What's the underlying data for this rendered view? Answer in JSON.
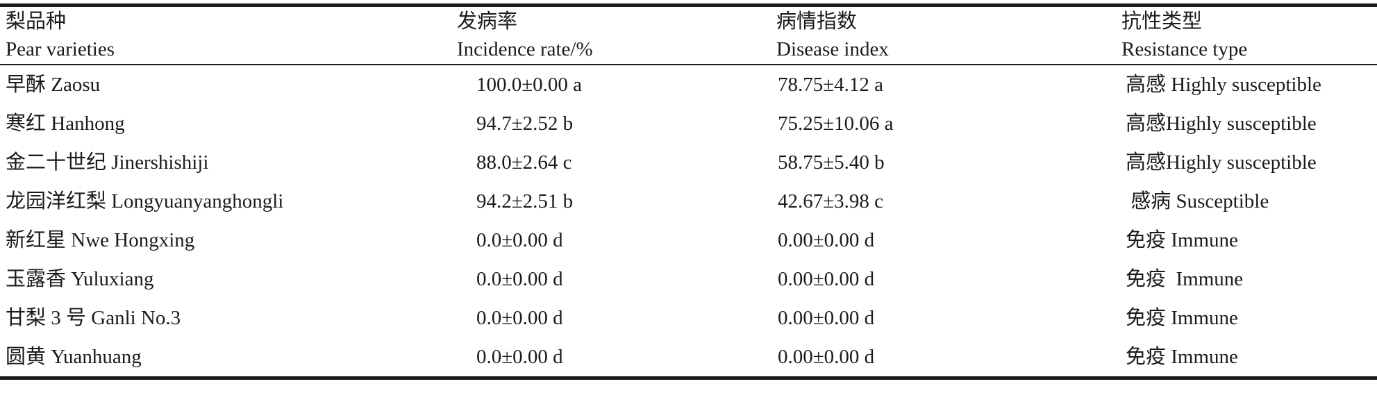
{
  "table": {
    "columns": [
      {
        "zh": "梨品种",
        "en": "Pear varieties"
      },
      {
        "zh": "发病率",
        "en": "Incidence rate/%"
      },
      {
        "zh": "病情指数",
        "en": "Disease index"
      },
      {
        "zh": "抗性类型",
        "en": "Resistance type"
      }
    ],
    "rows": [
      {
        "variety": "早酥 Zaosu",
        "incidence": "100.0±0.00 a",
        "disease_index": "78.75±4.12 a",
        "resistance": "高感 Highly susceptible"
      },
      {
        "variety": "寒红 Hanhong",
        "incidence": "94.7±2.52 b",
        "disease_index": "75.25±10.06 a",
        "resistance": "高感Highly susceptible"
      },
      {
        "variety": "金二十世纪 Jinershishiji",
        "incidence": "88.0±2.64 c",
        "disease_index": "58.75±5.40 b",
        "resistance": "高感Highly susceptible"
      },
      {
        "variety": "龙园洋红梨 Longyuanyanghongli",
        "incidence": "94.2±2.51 b",
        "disease_index": "42.67±3.98 c",
        "resistance": " 感病 Susceptible"
      },
      {
        "variety": "新红星 Nwe Hongxing",
        "incidence": "0.0±0.00 d",
        "disease_index": "0.00±0.00 d",
        "resistance": "免疫 Immune"
      },
      {
        "variety": "玉露香 Yuluxiang",
        "incidence": "0.0±0.00 d",
        "disease_index": "0.00±0.00 d",
        "resistance": "免疫  Immune"
      },
      {
        "variety": "甘梨 3 号 Ganli No.3",
        "incidence": "0.0±0.00 d",
        "disease_index": "0.00±0.00 d",
        "resistance": "免疫 Immune"
      },
      {
        "variety": "圆黄 Yuanhuang",
        "incidence": "0.0±0.00 d",
        "disease_index": "0.00±0.00 d",
        "resistance": "免疫 Immune"
      }
    ]
  },
  "colors": {
    "text": "#1b1b1b",
    "rule": "#1b1b1b",
    "background": "#ffffff"
  }
}
